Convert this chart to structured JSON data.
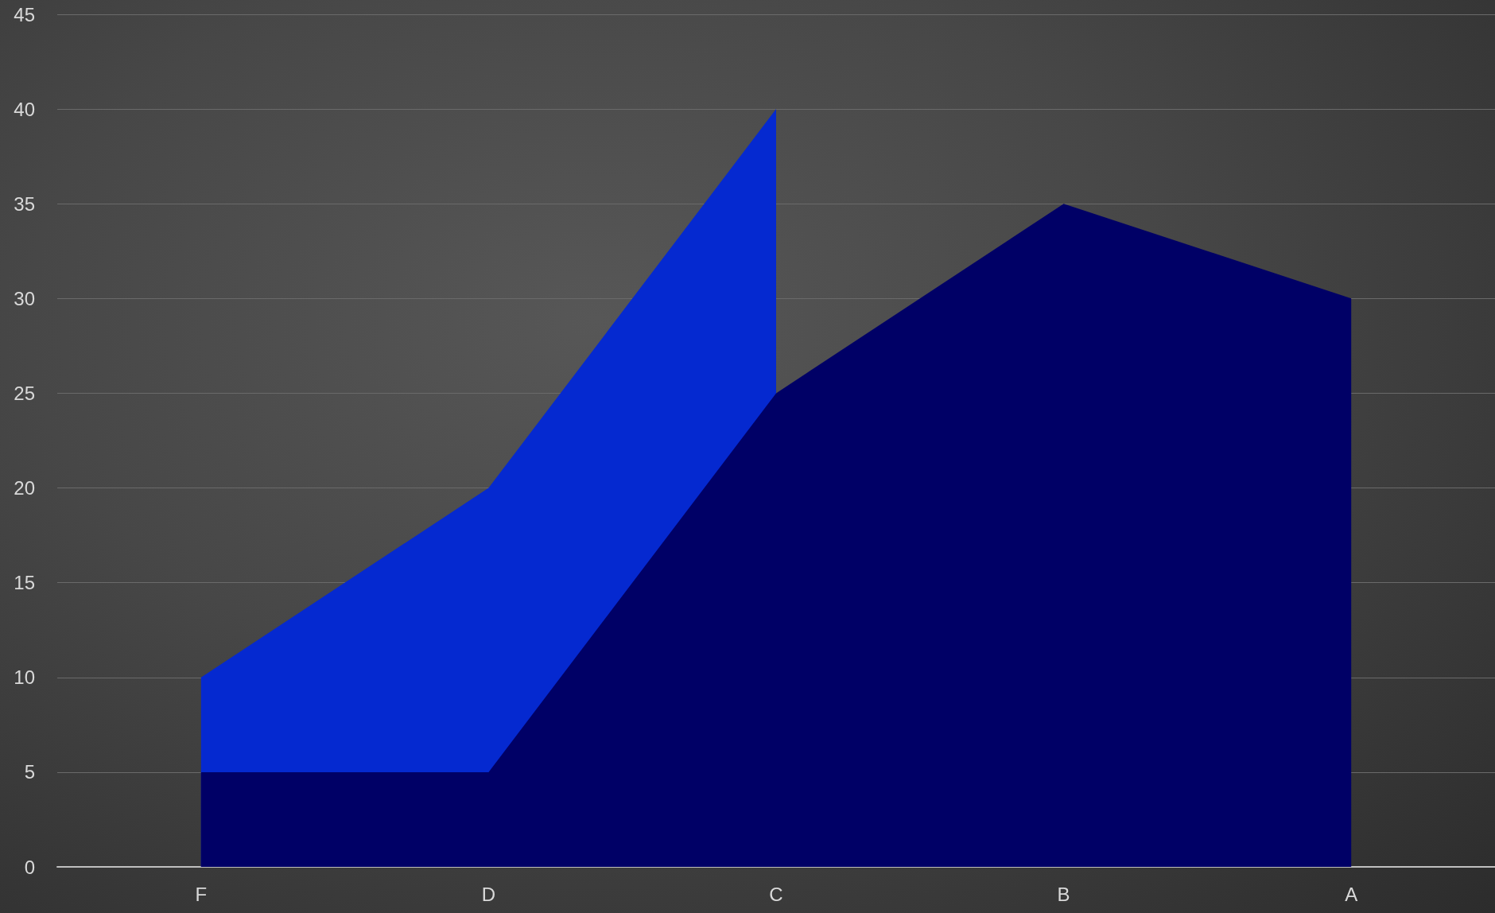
{
  "chart_data": {
    "type": "area",
    "categories": [
      "F",
      "D",
      "C",
      "B",
      "A"
    ],
    "series": [
      {
        "color": "#0529d0",
        "values": [
          10,
          20,
          40,
          null,
          null
        ]
      },
      {
        "color": "#000066",
        "values": [
          5,
          5,
          25,
          35,
          30
        ]
      }
    ],
    "ylim": [
      0,
      45
    ],
    "yticks": [
      0,
      5,
      10,
      15,
      20,
      25,
      30,
      35,
      40,
      45
    ],
    "grid": "y"
  }
}
